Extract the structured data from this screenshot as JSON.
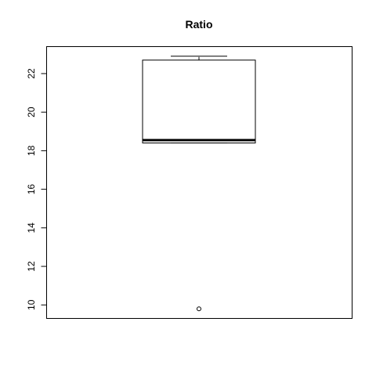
{
  "chart_data": {
    "type": "boxplot",
    "title": "Ratio",
    "xlabel": "",
    "ylabel": "",
    "ylim": [
      9.3,
      23.4
    ],
    "yticks": [
      "10",
      "12",
      "14",
      "16",
      "18",
      "20",
      "22"
    ],
    "box": {
      "whisker_low": 18.4,
      "q1": 18.4,
      "median": 18.55,
      "q3": 22.7,
      "whisker_high": 22.9
    },
    "outliers": [
      9.8
    ],
    "grid": false,
    "legend": "none"
  }
}
